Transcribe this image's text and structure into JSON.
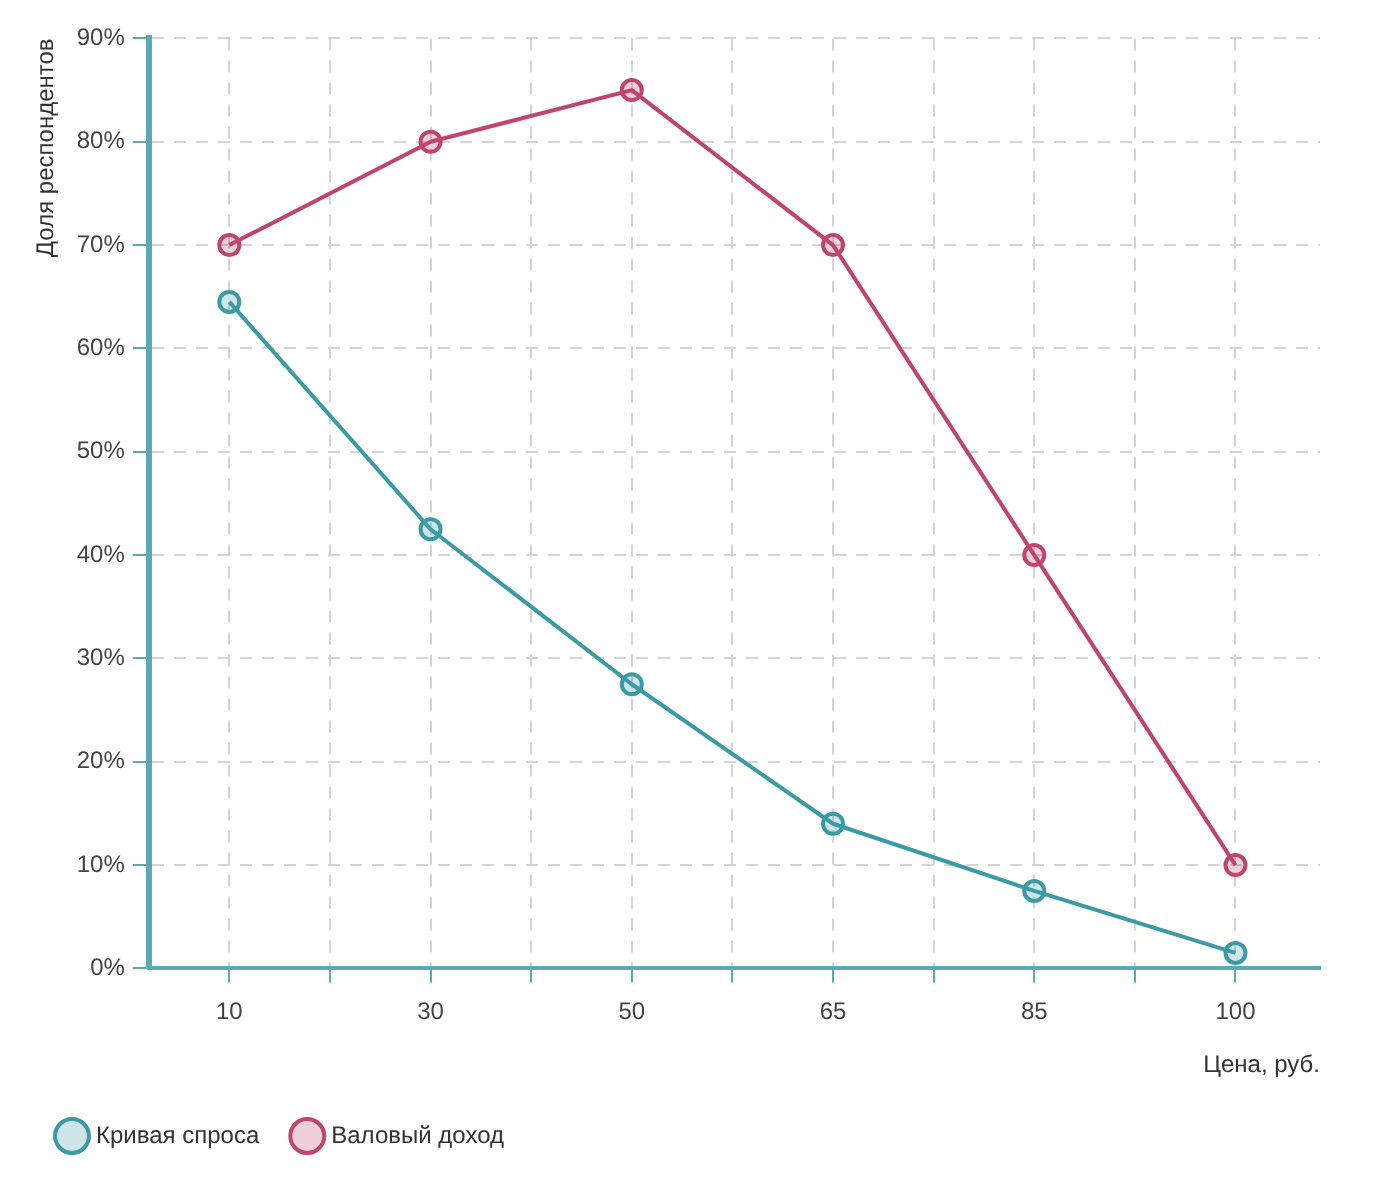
{
  "chart_data": {
    "type": "line",
    "xlabel": "Цена, руб.",
    "ylabel": "Доля респондентов",
    "categories": [
      "10",
      "30",
      "50",
      "65",
      "85",
      "100"
    ],
    "series": [
      {
        "name": "Кривая спроса",
        "color": "#3a9ba6",
        "values": [
          64.5,
          42.5,
          27.5,
          14,
          7.5,
          1.5
        ]
      },
      {
        "name": "Валовый доход",
        "color": "#c0456c",
        "values": [
          70,
          80,
          85,
          70,
          40,
          10
        ]
      }
    ],
    "ylim": [
      0,
      90
    ],
    "yticks": [
      {
        "value": 0,
        "label": "0%"
      },
      {
        "value": 10,
        "label": "10%"
      },
      {
        "value": 20,
        "label": "20%"
      },
      {
        "value": 30,
        "label": "30%"
      },
      {
        "value": 40,
        "label": "40%"
      },
      {
        "value": 50,
        "label": "50%"
      },
      {
        "value": 60,
        "label": "60%"
      },
      {
        "value": 70,
        "label": "70%"
      },
      {
        "value": 80,
        "label": "80%"
      },
      {
        "value": 90,
        "label": "90%"
      }
    ],
    "grid": true,
    "legend": "bottom left",
    "marker": "circle",
    "line_style": "solid"
  }
}
